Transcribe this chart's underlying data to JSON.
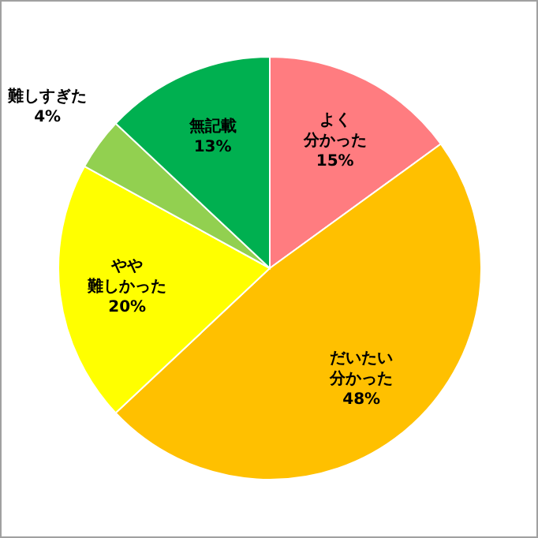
{
  "chart_data": {
    "type": "pie",
    "categories": [
      "よく分かった",
      "だいたい分かった",
      "やや難しかった",
      "難しすぎた",
      "無記載"
    ],
    "values": [
      15,
      48,
      20,
      4,
      13
    ],
    "value_labels": [
      "15%",
      "48%",
      "20%",
      "4%",
      "13%"
    ],
    "colors": [
      "#ff7c80",
      "#ffc000",
      "#ffff00",
      "#92d050",
      "#00b050"
    ],
    "legend": false
  }
}
